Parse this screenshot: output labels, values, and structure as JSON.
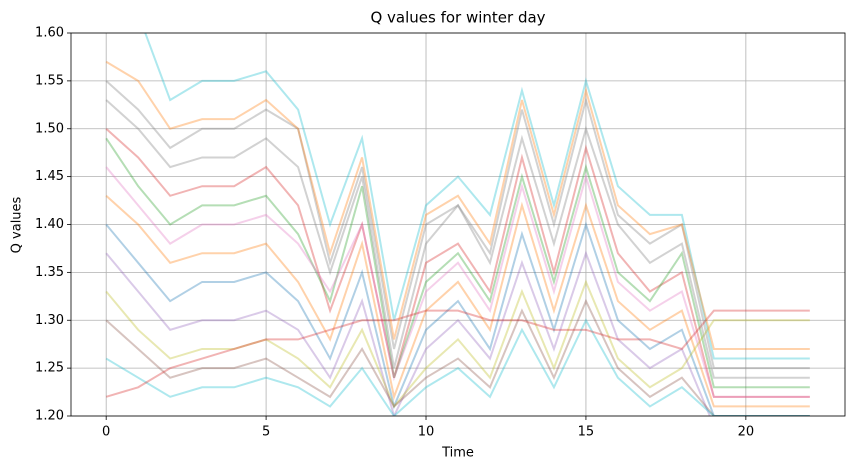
{
  "chart_data": {
    "type": "line",
    "title": "Q values for winter day",
    "x_label": "Time",
    "y_label": "Q values",
    "x": [
      0,
      1,
      2,
      3,
      4,
      5,
      6,
      7,
      8,
      9,
      10,
      11,
      12,
      13,
      14,
      15,
      16,
      17,
      18,
      19,
      20,
      21,
      22
    ],
    "xlim": [
      -1.1,
      23.1
    ],
    "xticks": [
      0,
      5,
      10,
      15,
      20
    ],
    "ylim": [
      1.2,
      1.6
    ],
    "yticks": [
      {
        "value": 1.2,
        "label": "1.20"
      },
      {
        "value": 1.25,
        "label": "1.25"
      },
      {
        "value": 1.3,
        "label": "1.30"
      },
      {
        "value": 1.35,
        "label": "1.35"
      },
      {
        "value": 1.4,
        "label": "1.40"
      },
      {
        "value": 1.45,
        "label": "1.45"
      },
      {
        "value": 1.5,
        "label": "1.50"
      },
      {
        "value": 1.55,
        "label": "1.55"
      },
      {
        "value": 1.6,
        "label": "1.60"
      }
    ],
    "grid": true,
    "opacity": 0.35,
    "series": [
      {
        "color": "#17becf",
        "values": [
          1.62,
          1.62,
          1.53,
          1.55,
          1.55,
          1.56,
          1.52,
          1.4,
          1.49,
          1.3,
          1.42,
          1.45,
          1.41,
          1.54,
          1.42,
          1.55,
          1.44,
          1.41,
          1.41,
          1.26,
          1.26,
          1.26,
          1.26
        ]
      },
      {
        "color": "#7f7f7f",
        "values": [
          1.55,
          1.52,
          1.48,
          1.5,
          1.5,
          1.52,
          1.5,
          1.36,
          1.46,
          1.27,
          1.4,
          1.42,
          1.37,
          1.52,
          1.4,
          1.53,
          1.41,
          1.38,
          1.4,
          1.25,
          1.25,
          1.25,
          1.25
        ]
      },
      {
        "color": "#d62728",
        "values": [
          1.5,
          1.47,
          1.43,
          1.44,
          1.44,
          1.46,
          1.42,
          1.31,
          1.4,
          1.24,
          1.36,
          1.38,
          1.33,
          1.47,
          1.35,
          1.48,
          1.37,
          1.33,
          1.35,
          1.22,
          1.22,
          1.22,
          1.22
        ]
      },
      {
        "color": "#2ca02c",
        "values": [
          1.49,
          1.44,
          1.4,
          1.42,
          1.42,
          1.43,
          1.39,
          1.32,
          1.44,
          1.24,
          1.34,
          1.37,
          1.32,
          1.45,
          1.34,
          1.46,
          1.35,
          1.32,
          1.37,
          1.23,
          1.23,
          1.23,
          1.23
        ]
      },
      {
        "color": "#ff7f0e",
        "values": [
          1.43,
          1.4,
          1.36,
          1.37,
          1.37,
          1.38,
          1.34,
          1.28,
          1.38,
          1.22,
          1.31,
          1.34,
          1.29,
          1.42,
          1.31,
          1.42,
          1.32,
          1.29,
          1.31,
          1.21,
          1.21,
          1.21,
          1.21
        ]
      },
      {
        "color": "#1f77b4",
        "values": [
          1.4,
          1.36,
          1.32,
          1.34,
          1.34,
          1.35,
          1.32,
          1.26,
          1.35,
          1.21,
          1.29,
          1.32,
          1.27,
          1.39,
          1.29,
          1.4,
          1.3,
          1.27,
          1.29,
          1.2,
          1.2,
          1.2,
          1.2
        ]
      },
      {
        "color": "#9467bd",
        "values": [
          1.37,
          1.33,
          1.29,
          1.3,
          1.3,
          1.31,
          1.29,
          1.24,
          1.32,
          1.2,
          1.27,
          1.3,
          1.26,
          1.36,
          1.27,
          1.37,
          1.28,
          1.25,
          1.27,
          1.19,
          1.19,
          1.19,
          1.19
        ]
      },
      {
        "color": "#e377c2",
        "values": [
          1.46,
          1.42,
          1.38,
          1.4,
          1.4,
          1.41,
          1.38,
          1.33,
          1.4,
          1.24,
          1.33,
          1.36,
          1.31,
          1.44,
          1.33,
          1.45,
          1.34,
          1.31,
          1.33,
          1.22,
          1.22,
          1.22,
          1.22
        ]
      },
      {
        "color": "#bcbd22",
        "values": [
          1.33,
          1.29,
          1.26,
          1.27,
          1.27,
          1.28,
          1.26,
          1.23,
          1.29,
          1.21,
          1.25,
          1.28,
          1.24,
          1.33,
          1.25,
          1.34,
          1.26,
          1.23,
          1.25,
          1.3,
          1.3,
          1.3,
          1.3
        ]
      },
      {
        "color": "#8c564b",
        "values": [
          1.3,
          1.27,
          1.24,
          1.25,
          1.25,
          1.26,
          1.24,
          1.22,
          1.27,
          1.21,
          1.24,
          1.26,
          1.23,
          1.31,
          1.24,
          1.32,
          1.25,
          1.22,
          1.24,
          1.2,
          1.2,
          1.2,
          1.2
        ]
      },
      {
        "color": "#17becf",
        "values": [
          1.26,
          1.24,
          1.22,
          1.23,
          1.23,
          1.24,
          1.23,
          1.21,
          1.25,
          1.2,
          1.23,
          1.25,
          1.22,
          1.29,
          1.23,
          1.3,
          1.24,
          1.21,
          1.23,
          1.2,
          1.2,
          1.2,
          1.2
        ]
      },
      {
        "color": "#d62728",
        "values": [
          1.22,
          1.23,
          1.25,
          1.26,
          1.27,
          1.28,
          1.28,
          1.29,
          1.3,
          1.3,
          1.31,
          1.31,
          1.3,
          1.3,
          1.29,
          1.29,
          1.28,
          1.28,
          1.27,
          1.31,
          1.31,
          1.31,
          1.31
        ]
      },
      {
        "color": "#7f7f7f",
        "values": [
          1.53,
          1.5,
          1.46,
          1.47,
          1.47,
          1.49,
          1.46,
          1.35,
          1.45,
          1.25,
          1.38,
          1.42,
          1.36,
          1.49,
          1.38,
          1.5,
          1.4,
          1.36,
          1.38,
          1.24,
          1.24,
          1.24,
          1.24
        ]
      },
      {
        "color": "#ff7f0e",
        "values": [
          1.57,
          1.55,
          1.5,
          1.51,
          1.51,
          1.53,
          1.5,
          1.37,
          1.47,
          1.28,
          1.41,
          1.43,
          1.38,
          1.53,
          1.41,
          1.54,
          1.42,
          1.39,
          1.4,
          1.27,
          1.27,
          1.27,
          1.27
        ]
      }
    ]
  }
}
